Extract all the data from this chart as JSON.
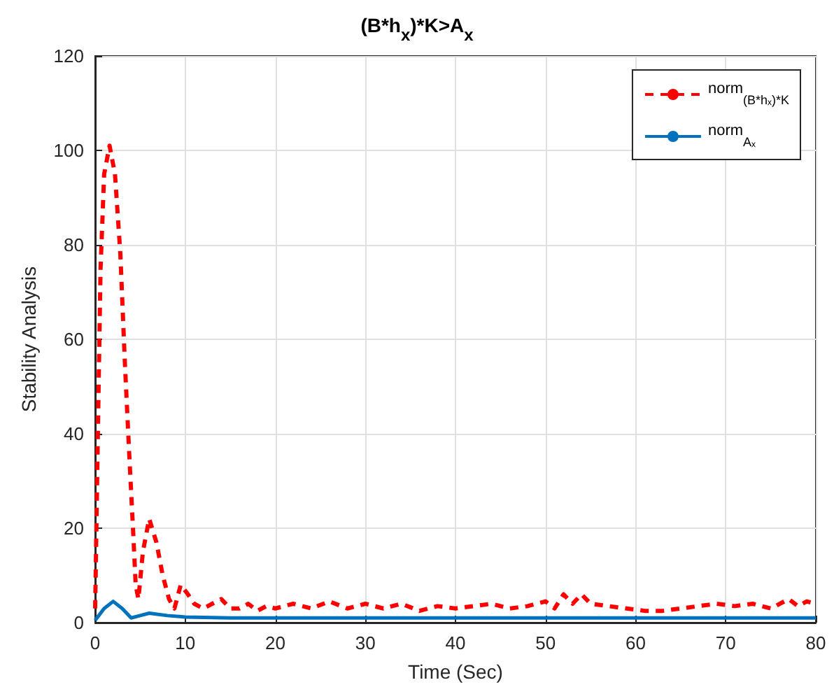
{
  "chart_data": {
    "type": "line",
    "title": "(B*h$_{x}$)*K>A$_{x}$",
    "xlabel": "Time (Sec)",
    "ylabel": "Stability Analysis",
    "xlim": [
      0,
      80
    ],
    "xticks": [
      0,
      10,
      20,
      30,
      40,
      50,
      60,
      70,
      80
    ],
    "ylim": [
      0,
      120
    ],
    "yticks": [
      0,
      20,
      40,
      60,
      80,
      100,
      120
    ],
    "grid": true,
    "legend": "top right",
    "marker": "none",
    "series": [
      {
        "name": "norm$_{(B*hₓ)*K}$",
        "color": "#ff0000",
        "line_style": "dashed",
        "x": [
          0,
          0.3,
          0.6,
          1.0,
          1.6,
          2.2,
          2.8,
          3.3,
          3.8,
          4.2,
          4.5,
          4.8,
          5.3,
          6.0,
          6.8,
          7.5,
          8.2,
          8.8,
          9.5,
          10.3,
          11,
          12,
          13,
          14,
          15,
          16,
          17,
          18,
          19,
          20,
          22,
          24,
          26,
          28,
          30,
          32,
          34,
          36,
          38,
          40,
          42,
          44,
          46,
          48,
          50,
          51,
          52,
          53,
          54,
          55,
          57,
          59,
          61,
          63,
          65,
          67,
          69,
          71,
          73,
          75,
          77,
          78,
          79,
          80
        ],
        "values": [
          3,
          40,
          75,
          95,
          101,
          95,
          78,
          55,
          35,
          20,
          8,
          5,
          15,
          22,
          17,
          10,
          5,
          3,
          8,
          6,
          4,
          3,
          4,
          5,
          3,
          3,
          4,
          2.5,
          3.5,
          3,
          4,
          3,
          4.5,
          3,
          4,
          3,
          4,
          2.5,
          3.5,
          3,
          3.5,
          4,
          3,
          3.5,
          4.5,
          3,
          6,
          4,
          6,
          4,
          3.5,
          3,
          2.5,
          2.5,
          3,
          3.5,
          4,
          3.5,
          4,
          3,
          5,
          3.5,
          4.5,
          4
        ]
      },
      {
        "name": "norm$_{Aₓ}$",
        "color": "#0072bd",
        "line_style": "solid",
        "x": [
          0,
          1,
          2,
          3,
          4,
          5,
          6,
          8,
          10,
          15,
          20,
          30,
          40,
          50,
          60,
          70,
          80
        ],
        "values": [
          0.5,
          3,
          4.5,
          3,
          1,
          1.5,
          2,
          1.5,
          1.2,
          1,
          1,
          1,
          1,
          1,
          1,
          1,
          1
        ]
      }
    ]
  }
}
